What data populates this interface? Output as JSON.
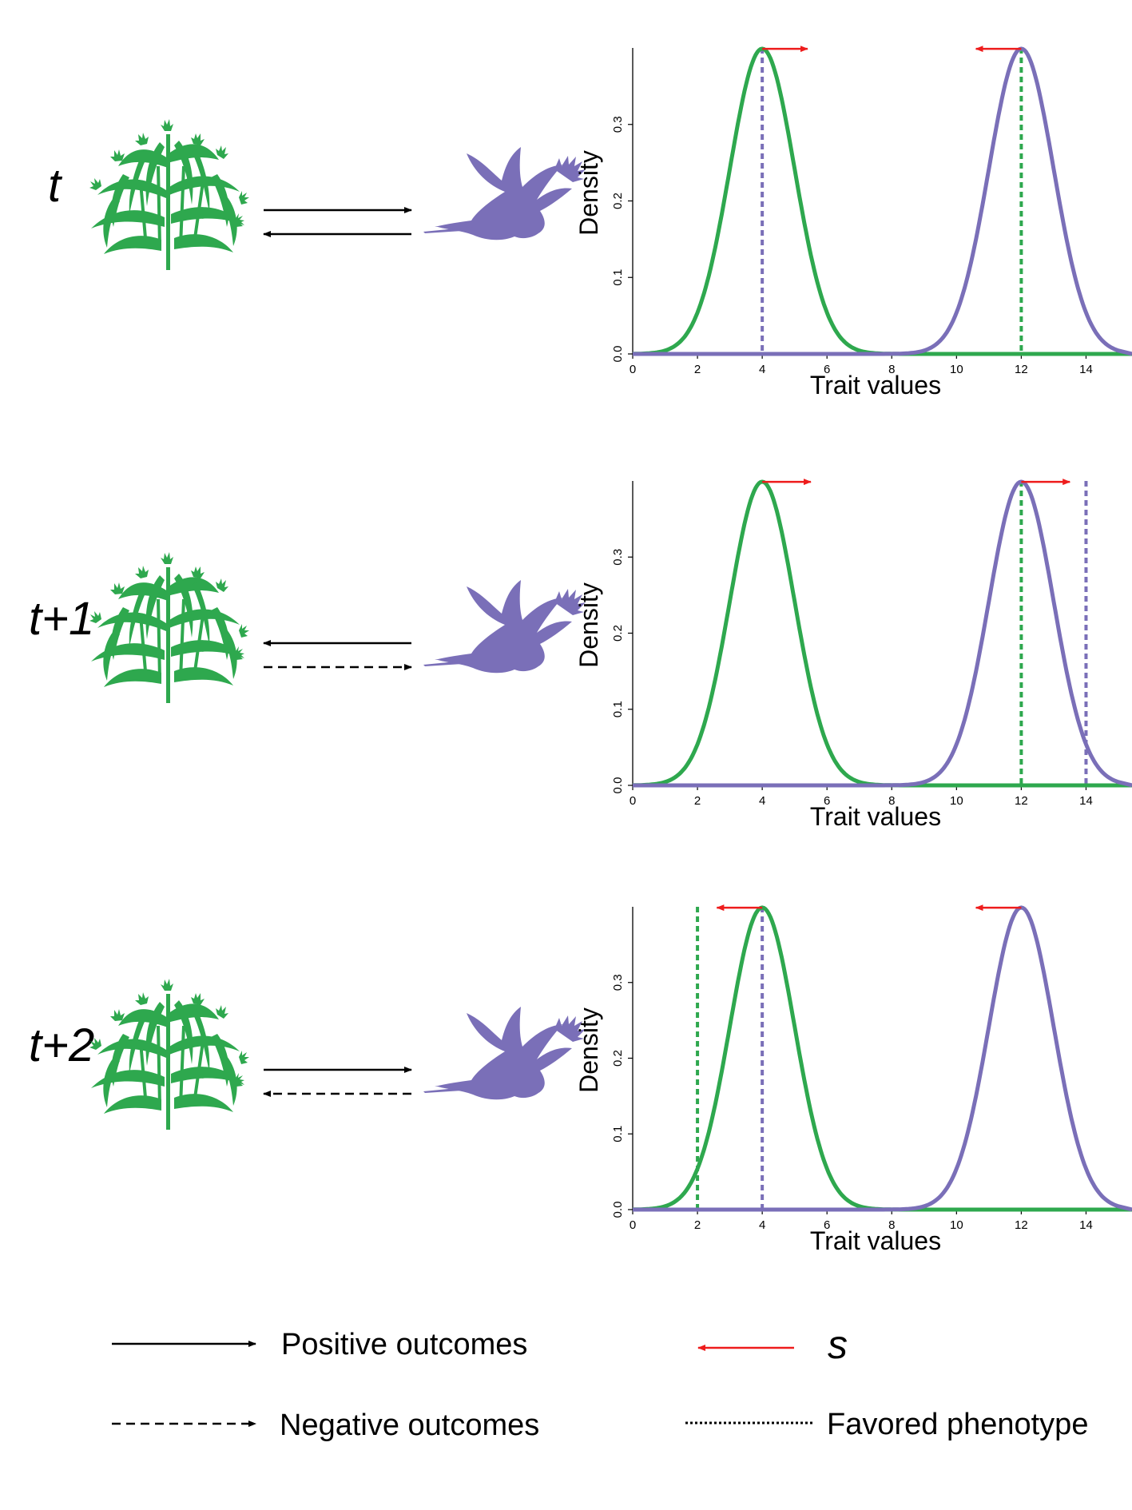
{
  "colors": {
    "plant": "#2ea84e",
    "bird": "#7a6fb8",
    "selection_arrow": "#ee1c1c",
    "outcome_arrow": "#000000"
  },
  "icons": {
    "plant": "plant-icon",
    "bird": "bird-icon"
  },
  "rows": [
    {
      "label": "t",
      "top_arrow": "solid",
      "top_direction": "plant-to-bird",
      "bottom_arrow": "solid",
      "bottom_direction": "bird-to-plant"
    },
    {
      "label": "t+1",
      "top_arrow": "solid",
      "top_direction": "bird-to-plant",
      "bottom_arrow": "dashed",
      "bottom_direction": "plant-to-bird"
    },
    {
      "label": "t+2",
      "top_arrow": "solid",
      "top_direction": "plant-to-bird",
      "bottom_arrow": "dashed",
      "bottom_direction": "bird-to-plant"
    }
  ],
  "legend": {
    "positive": "Positive outcomes",
    "negative": "Negative outcomes",
    "s": "s",
    "favored": "Favored phenotype"
  },
  "chart_data": [
    {
      "type": "line",
      "xlabel": "Trait values",
      "ylabel": "Density",
      "xlim": [
        0,
        15
      ],
      "ylim": [
        0,
        0.4
      ],
      "xticks": [
        0,
        2,
        4,
        6,
        8,
        10,
        12,
        14
      ],
      "yticks": [
        "0.0",
        "0.1",
        "0.2",
        "0.3"
      ],
      "series": [
        {
          "color": "plant",
          "mean": 4,
          "sd": 1,
          "peak": 0.399
        },
        {
          "color": "bird",
          "mean": 12,
          "sd": 1,
          "peak": 0.399
        }
      ],
      "favored_phenotypes": [
        {
          "color": "bird",
          "x": 4
        },
        {
          "color": "plant",
          "x": 12
        }
      ],
      "selection_arrows": [
        {
          "color": "plant",
          "from": 4,
          "to": 5.4
        },
        {
          "color": "bird",
          "from": 12,
          "to": 10.6
        }
      ]
    },
    {
      "type": "line",
      "xlabel": "Trait values",
      "ylabel": "Density",
      "xlim": [
        0,
        15
      ],
      "ylim": [
        0,
        0.4
      ],
      "xticks": [
        0,
        2,
        4,
        6,
        8,
        10,
        12,
        14
      ],
      "yticks": [
        "0.0",
        "0.1",
        "0.2",
        "0.3"
      ],
      "series": [
        {
          "color": "plant",
          "mean": 4,
          "sd": 1,
          "peak": 0.399
        },
        {
          "color": "bird",
          "mean": 12,
          "sd": 1,
          "peak": 0.399
        }
      ],
      "favored_phenotypes": [
        {
          "color": "plant",
          "x": 12
        },
        {
          "color": "bird",
          "x": 14
        }
      ],
      "selection_arrows": [
        {
          "color": "plant",
          "from": 4,
          "to": 5.5
        },
        {
          "color": "bird",
          "from": 12,
          "to": 13.5
        }
      ]
    },
    {
      "type": "line",
      "xlabel": "Trait values",
      "ylabel": "Density",
      "xlim": [
        0,
        15
      ],
      "ylim": [
        0,
        0.4
      ],
      "xticks": [
        0,
        2,
        4,
        6,
        8,
        10,
        12,
        14
      ],
      "yticks": [
        "0.0",
        "0.1",
        "0.2",
        "0.3"
      ],
      "series": [
        {
          "color": "plant",
          "mean": 4,
          "sd": 1,
          "peak": 0.399
        },
        {
          "color": "bird",
          "mean": 12,
          "sd": 1,
          "peak": 0.399
        }
      ],
      "favored_phenotypes": [
        {
          "color": "plant",
          "x": 2
        },
        {
          "color": "bird",
          "x": 4
        }
      ],
      "selection_arrows": [
        {
          "color": "plant",
          "from": 4,
          "to": 2.6
        },
        {
          "color": "bird",
          "from": 12,
          "to": 10.6
        }
      ]
    }
  ]
}
